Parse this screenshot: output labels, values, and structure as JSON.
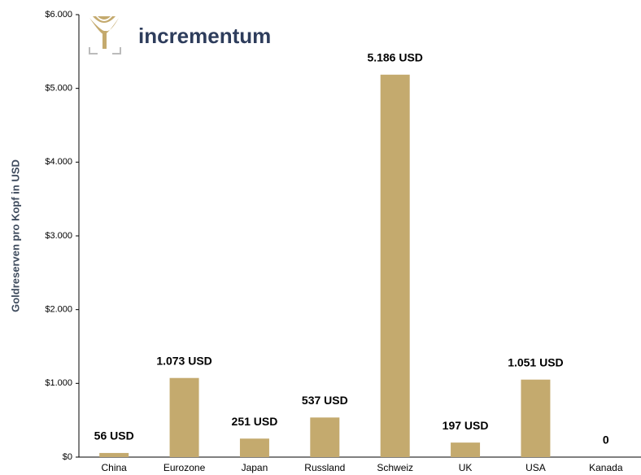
{
  "logo": "incrementum",
  "chart_data": {
    "type": "bar",
    "y_label": "Goldreserven pro Kopf in USD",
    "categories": [
      "China",
      "Eurozone",
      "Japan",
      "Russland",
      "Schweiz",
      "UK",
      "USA",
      "Kanada"
    ],
    "values": [
      56,
      1073,
      251,
      537,
      5186,
      197,
      1051,
      0
    ],
    "value_labels": [
      "56 USD",
      "1.073 USD",
      "251 USD",
      "537 USD",
      "5.186 USD",
      "197 USD",
      "1.051 USD",
      "0"
    ],
    "color": "#c4aa6e",
    "ylim": [
      0,
      6000
    ],
    "yticks": [
      {
        "value": 0,
        "label": "$0"
      },
      {
        "value": 1000,
        "label": "$1.000"
      },
      {
        "value": 2000,
        "label": "$2.000"
      },
      {
        "value": 3000,
        "label": "$3.000"
      },
      {
        "value": 4000,
        "label": "$4.000"
      },
      {
        "value": 5000,
        "label": "$5.000"
      },
      {
        "value": 6000,
        "label": "$6.000"
      }
    ],
    "grid": false
  }
}
